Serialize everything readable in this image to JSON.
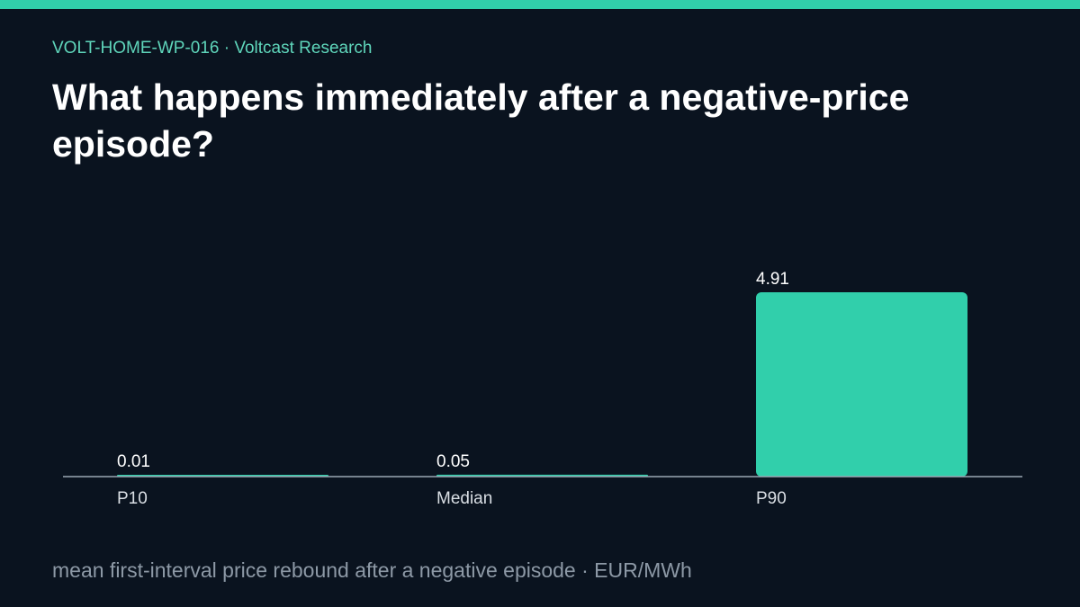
{
  "header": {
    "kicker": "VOLT-HOME-WP-016 · Voltcast Research",
    "title": "What happens immediately after a negative-price episode?"
  },
  "footnote": "mean first-interval price rebound after a negative episode · EUR/MWh",
  "colors": {
    "background": "#0a131f",
    "accent": "#31cfab",
    "axis": "#9aa7b4",
    "text": "#ffffff",
    "muted": "#8d99a6"
  },
  "chart_data": {
    "type": "bar",
    "categories": [
      "P10",
      "Median",
      "P90"
    ],
    "values": [
      0.01,
      0.05,
      4.91
    ],
    "value_labels": [
      "0.01",
      "0.05",
      "4.91"
    ],
    "title": "",
    "xlabel": "",
    "ylabel": "",
    "ylim": [
      0,
      4.91
    ],
    "grid": false,
    "legend": "none"
  }
}
